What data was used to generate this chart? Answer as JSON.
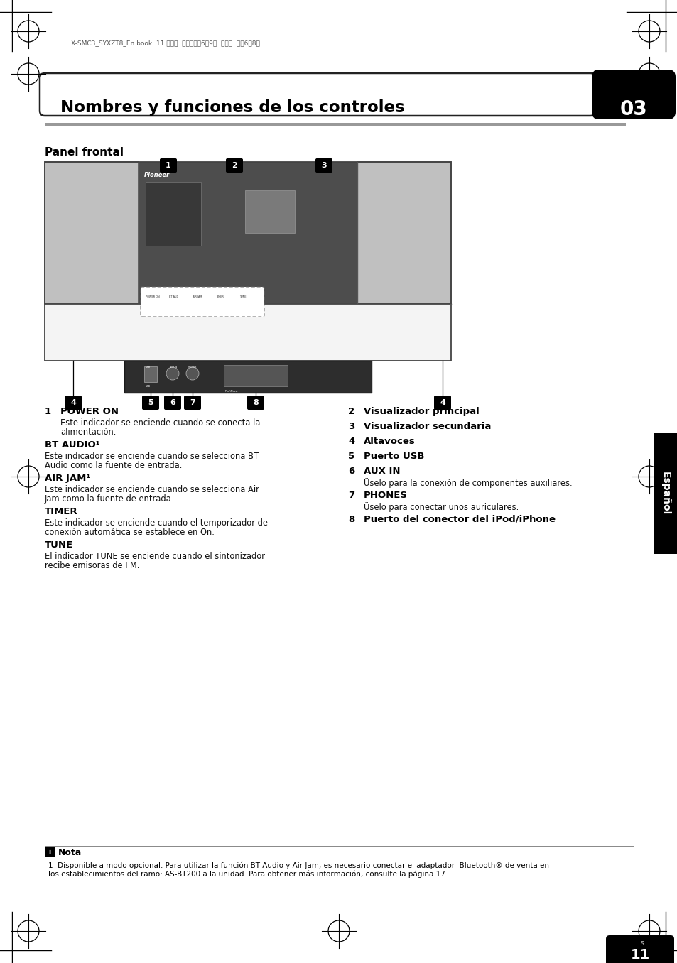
{
  "page_bg": "#ffffff",
  "header_text": "X-SMC3_SYXZT8_En.book  11 ページ  ２０１１年6月9日  木曜日  午後6晎8分",
  "title_text": "Nombres y funciones de los controles",
  "chapter_num": "03",
  "section_title": "Panel frontal",
  "sidebar_text": "Español",
  "page_num": "11",
  "page_num_sub": "Es",
  "items_left": [
    {
      "num": "1",
      "heading": "POWER ON",
      "body": "Este indicador se enciende cuando se conecta la\nalimentación."
    },
    {
      "num": "",
      "heading": "BT AUDIO¹",
      "body": "Este indicador se enciende cuando se selecciona BT\nAudio como la fuente de entrada."
    },
    {
      "num": "",
      "heading": "AIR JAM¹",
      "body": "Este indicador se enciende cuando se selecciona Air\nJam como la fuente de entrada."
    },
    {
      "num": "",
      "heading": "TIMER",
      "body": "Este indicador se enciende cuando el temporizador de\nconexión automática se establece en On."
    },
    {
      "num": "",
      "heading": "TUNE",
      "body": "El indicador TUNE se enciende cuando el sintonizador\nrecibe emisoras de FM."
    }
  ],
  "items_right": [
    {
      "num": "2",
      "heading": "Visualizador principal",
      "body": ""
    },
    {
      "num": "3",
      "heading": "Visualizador secundaria",
      "body": ""
    },
    {
      "num": "4",
      "heading": "Altavoces",
      "body": ""
    },
    {
      "num": "5",
      "heading": "Puerto USB",
      "body": ""
    },
    {
      "num": "6",
      "heading": "AUX IN",
      "body": "Üselo para la conexión de componentes auxiliares."
    },
    {
      "num": "7",
      "heading": "PHONES",
      "body": "Üselo para conectar unos auriculares."
    },
    {
      "num": "8",
      "heading": "Puerto del conector del iPod/iPhone",
      "body": ""
    }
  ],
  "note_title": "Nota",
  "note_body": "1  Disponible a modo opcional. Para utilizar la función BT Audio y Air Jam, es necesario conectar el adaptador  Bluetooth® de venta en\nlos establecimientos del ramo: AS-BT200 a la unidad. Para obtener más información, consulte la página 17."
}
